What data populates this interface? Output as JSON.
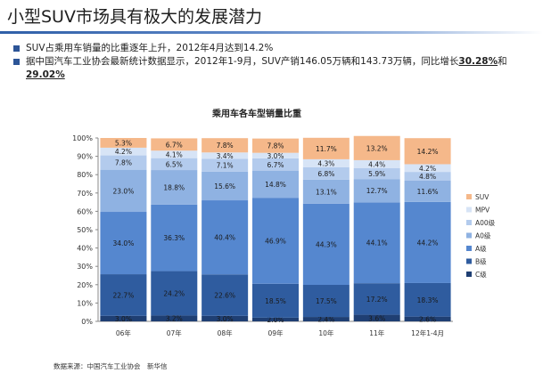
{
  "slide": {
    "title": "小型SUV市场具有极大的发展潜力",
    "bullet1": "SUV占乘用车销量的比重逐年上升，2012年4月达到14.2%",
    "bullet2_prefix": "据中国汽车工业协会最新统计数据显示，2012年1-9月，SUV产销146.05万辆和143.73万辆，同比增长",
    "bullet2_v1": "30.28%",
    "bullet2_mid": "和",
    "bullet2_v2": "29.02%",
    "source": "数据来源：中国汽车工业协会　新华信"
  },
  "chart_data": {
    "type": "bar",
    "stacked": true,
    "title": "乘用车各车型销量比重",
    "categories": [
      "06年",
      "07年",
      "08年",
      "09年",
      "10年",
      "11年",
      "12年1-4月"
    ],
    "y_ticks": [
      "0%",
      "10%",
      "20%",
      "30%",
      "40%",
      "50%",
      "60%",
      "70%",
      "80%",
      "90%",
      "100%"
    ],
    "ylim": [
      0,
      100
    ],
    "legend_position": "right",
    "series": [
      {
        "name": "C级",
        "color": "#1f3f73",
        "labels": [
          "3.0%",
          "3.2%",
          "3.0%",
          "2.0%",
          "2.4%",
          "3.6%",
          "2.6%"
        ],
        "values": [
          3.0,
          3.2,
          3.0,
          2.0,
          2.4,
          3.6,
          2.6
        ]
      },
      {
        "name": "B级",
        "color": "#2f5c9f",
        "labels": [
          "22.7%",
          "24.2%",
          "22.6%",
          "18.5%",
          "17.5%",
          "17.2%",
          "18.3%"
        ],
        "values": [
          22.7,
          24.2,
          22.6,
          18.5,
          17.5,
          17.2,
          18.3
        ]
      },
      {
        "name": "A级",
        "color": "#5587cf",
        "labels": [
          "34.0%",
          "36.3%",
          "40.4%",
          "46.9%",
          "44.3%",
          "44.1%",
          "44.2%"
        ],
        "values": [
          34.0,
          36.3,
          40.4,
          46.9,
          44.3,
          44.1,
          44.2
        ]
      },
      {
        "name": "A0级",
        "color": "#8fb2e2",
        "labels": [
          "23.0%",
          "18.8%",
          "15.6%",
          "14.8%",
          "13.1%",
          "12.7%",
          "11.6%"
        ],
        "values": [
          23.0,
          18.8,
          15.6,
          14.8,
          13.1,
          12.7,
          11.6
        ]
      },
      {
        "name": "A00级",
        "color": "#b3cbed",
        "labels": [
          "7.8%",
          "6.5%",
          "7.1%",
          "6.7%",
          "6.8%",
          "5.9%",
          "4.8%"
        ],
        "values": [
          7.8,
          6.5,
          7.1,
          6.7,
          6.8,
          5.9,
          4.8
        ]
      },
      {
        "name": "MPV",
        "color": "#d7e4f6",
        "labels": [
          "4.2%",
          "4.1%",
          "3.4%",
          "3.0%",
          "4.3%",
          "4.4%",
          "4.2%"
        ],
        "values": [
          4.2,
          4.1,
          3.4,
          3.0,
          4.3,
          4.4,
          4.2
        ]
      },
      {
        "name": "SUV",
        "color": "#f5b88a",
        "labels": [
          "5.3%",
          "6.7%",
          "7.8%",
          "7.8%",
          "11.7%",
          "13.2%",
          "14.2%"
        ],
        "values": [
          5.3,
          6.7,
          7.8,
          7.8,
          11.7,
          13.2,
          14.2
        ]
      }
    ]
  }
}
